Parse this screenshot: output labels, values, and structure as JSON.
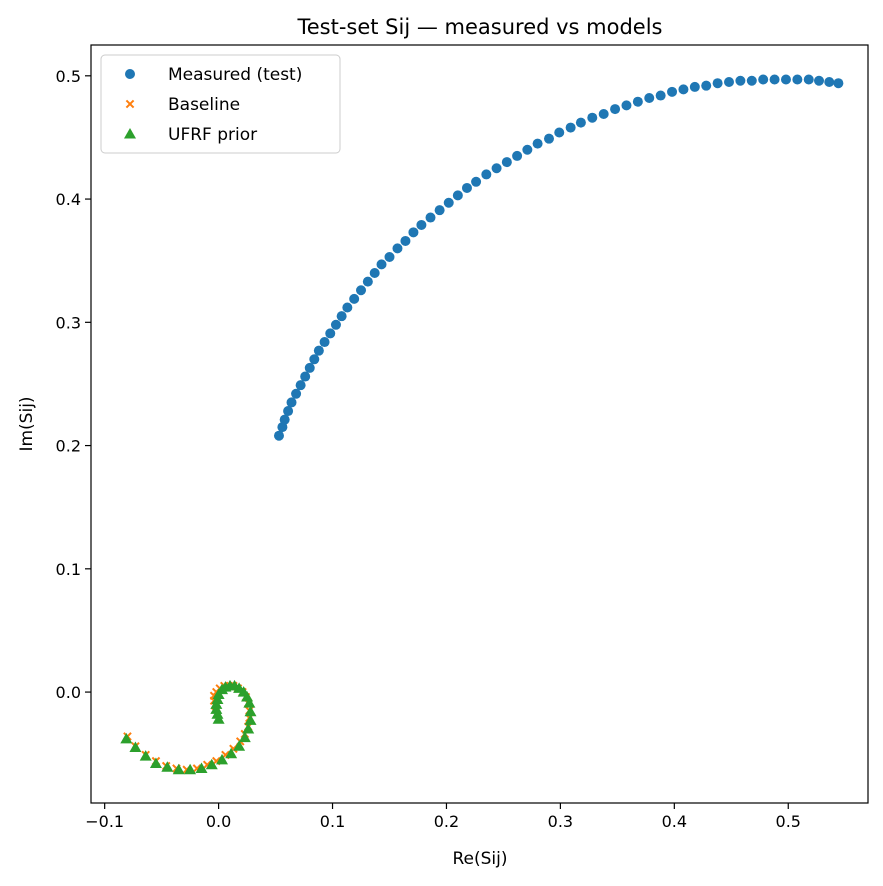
{
  "chart_data": {
    "type": "scatter",
    "title": "Test-set Sij — measured vs models",
    "xlabel": "Re(Sij)",
    "ylabel": "Im(Sij)",
    "xlim": [
      -0.112,
      0.57
    ],
    "ylim": [
      -0.09,
      0.525
    ],
    "xticks": [
      -0.1,
      0.0,
      0.1,
      0.2,
      0.3,
      0.4,
      0.5
    ],
    "yticks": [
      0.0,
      0.1,
      0.2,
      0.3,
      0.4,
      0.5
    ],
    "xtick_labels": [
      "−0.1",
      "0.0",
      "0.1",
      "0.2",
      "0.3",
      "0.4",
      "0.5"
    ],
    "ytick_labels": [
      "0.0",
      "0.1",
      "0.2",
      "0.3",
      "0.4",
      "0.5"
    ],
    "grid": false,
    "legend_position": "top-left",
    "series": [
      {
        "name": "Measured (test)",
        "marker": "circle",
        "color": "#1f77b4",
        "points": [
          [
            0.053,
            0.208
          ],
          [
            0.056,
            0.215
          ],
          [
            0.058,
            0.221
          ],
          [
            0.061,
            0.228
          ],
          [
            0.064,
            0.235
          ],
          [
            0.068,
            0.242
          ],
          [
            0.072,
            0.249
          ],
          [
            0.076,
            0.256
          ],
          [
            0.08,
            0.263
          ],
          [
            0.084,
            0.27
          ],
          [
            0.088,
            0.277
          ],
          [
            0.093,
            0.284
          ],
          [
            0.098,
            0.291
          ],
          [
            0.103,
            0.298
          ],
          [
            0.108,
            0.305
          ],
          [
            0.113,
            0.312
          ],
          [
            0.119,
            0.319
          ],
          [
            0.125,
            0.326
          ],
          [
            0.131,
            0.333
          ],
          [
            0.137,
            0.34
          ],
          [
            0.143,
            0.347
          ],
          [
            0.15,
            0.353
          ],
          [
            0.157,
            0.36
          ],
          [
            0.164,
            0.366
          ],
          [
            0.171,
            0.373
          ],
          [
            0.178,
            0.379
          ],
          [
            0.186,
            0.385
          ],
          [
            0.194,
            0.391
          ],
          [
            0.202,
            0.397
          ],
          [
            0.21,
            0.403
          ],
          [
            0.218,
            0.409
          ],
          [
            0.226,
            0.414
          ],
          [
            0.235,
            0.42
          ],
          [
            0.244,
            0.425
          ],
          [
            0.253,
            0.43
          ],
          [
            0.262,
            0.435
          ],
          [
            0.271,
            0.44
          ],
          [
            0.28,
            0.445
          ],
          [
            0.29,
            0.449
          ],
          [
            0.299,
            0.454
          ],
          [
            0.309,
            0.458
          ],
          [
            0.318,
            0.462
          ],
          [
            0.328,
            0.466
          ],
          [
            0.338,
            0.469
          ],
          [
            0.348,
            0.473
          ],
          [
            0.358,
            0.476
          ],
          [
            0.368,
            0.479
          ],
          [
            0.378,
            0.482
          ],
          [
            0.388,
            0.484
          ],
          [
            0.398,
            0.487
          ],
          [
            0.408,
            0.489
          ],
          [
            0.418,
            0.491
          ],
          [
            0.428,
            0.492
          ],
          [
            0.438,
            0.494
          ],
          [
            0.448,
            0.495
          ],
          [
            0.458,
            0.496
          ],
          [
            0.468,
            0.496
          ],
          [
            0.478,
            0.497
          ],
          [
            0.488,
            0.497
          ],
          [
            0.498,
            0.497
          ],
          [
            0.508,
            0.497
          ],
          [
            0.518,
            0.497
          ],
          [
            0.527,
            0.496
          ],
          [
            0.536,
            0.495
          ],
          [
            0.544,
            0.494
          ]
        ]
      },
      {
        "name": "Baseline",
        "marker": "x",
        "color": "#ff7f0e",
        "points": [
          [
            -0.08,
            -0.036
          ],
          [
            -0.073,
            -0.044
          ],
          [
            -0.064,
            -0.051
          ],
          [
            -0.055,
            -0.056
          ],
          [
            -0.046,
            -0.06
          ],
          [
            -0.037,
            -0.062
          ],
          [
            -0.028,
            -0.063
          ],
          [
            -0.019,
            -0.062
          ],
          [
            -0.01,
            -0.059
          ],
          [
            -0.002,
            -0.056
          ],
          [
            0.006,
            -0.051
          ],
          [
            0.013,
            -0.046
          ],
          [
            0.019,
            -0.04
          ],
          [
            0.023,
            -0.034
          ],
          [
            0.026,
            -0.028
          ],
          [
            0.027,
            -0.021
          ],
          [
            0.027,
            -0.015
          ],
          [
            0.026,
            -0.009
          ],
          [
            0.024,
            -0.004
          ],
          [
            0.021,
            0.0
          ],
          [
            0.017,
            0.003
          ],
          [
            0.013,
            0.005
          ],
          [
            0.009,
            0.005
          ],
          [
            0.005,
            0.005
          ],
          [
            0.001,
            0.003
          ],
          [
            -0.002,
            0.0
          ],
          [
            -0.004,
            -0.003
          ],
          [
            -0.004,
            -0.007
          ],
          [
            -0.003,
            -0.011
          ],
          [
            -0.002,
            -0.014
          ]
        ]
      },
      {
        "name": "UFRF prior",
        "marker": "triangle",
        "color": "#2ca02c",
        "points": [
          [
            -0.081,
            -0.038
          ],
          [
            -0.073,
            -0.045
          ],
          [
            -0.064,
            -0.052
          ],
          [
            -0.055,
            -0.058
          ],
          [
            -0.045,
            -0.061
          ],
          [
            -0.035,
            -0.063
          ],
          [
            -0.025,
            -0.063
          ],
          [
            -0.015,
            -0.062
          ],
          [
            -0.006,
            -0.059
          ],
          [
            0.003,
            -0.055
          ],
          [
            0.011,
            -0.05
          ],
          [
            0.018,
            -0.044
          ],
          [
            0.023,
            -0.037
          ],
          [
            0.026,
            -0.03
          ],
          [
            0.028,
            -0.023
          ],
          [
            0.028,
            -0.016
          ],
          [
            0.027,
            -0.009
          ],
          [
            0.025,
            -0.004
          ],
          [
            0.022,
            0.0
          ],
          [
            0.018,
            0.003
          ],
          [
            0.014,
            0.005
          ],
          [
            0.01,
            0.005
          ],
          [
            0.006,
            0.004
          ],
          [
            0.003,
            0.002
          ],
          [
            0.0,
            -0.002
          ],
          [
            -0.001,
            -0.006
          ],
          [
            -0.002,
            -0.01
          ],
          [
            -0.002,
            -0.014
          ],
          [
            -0.001,
            -0.018
          ],
          [
            0.0,
            -0.022
          ]
        ]
      }
    ]
  }
}
